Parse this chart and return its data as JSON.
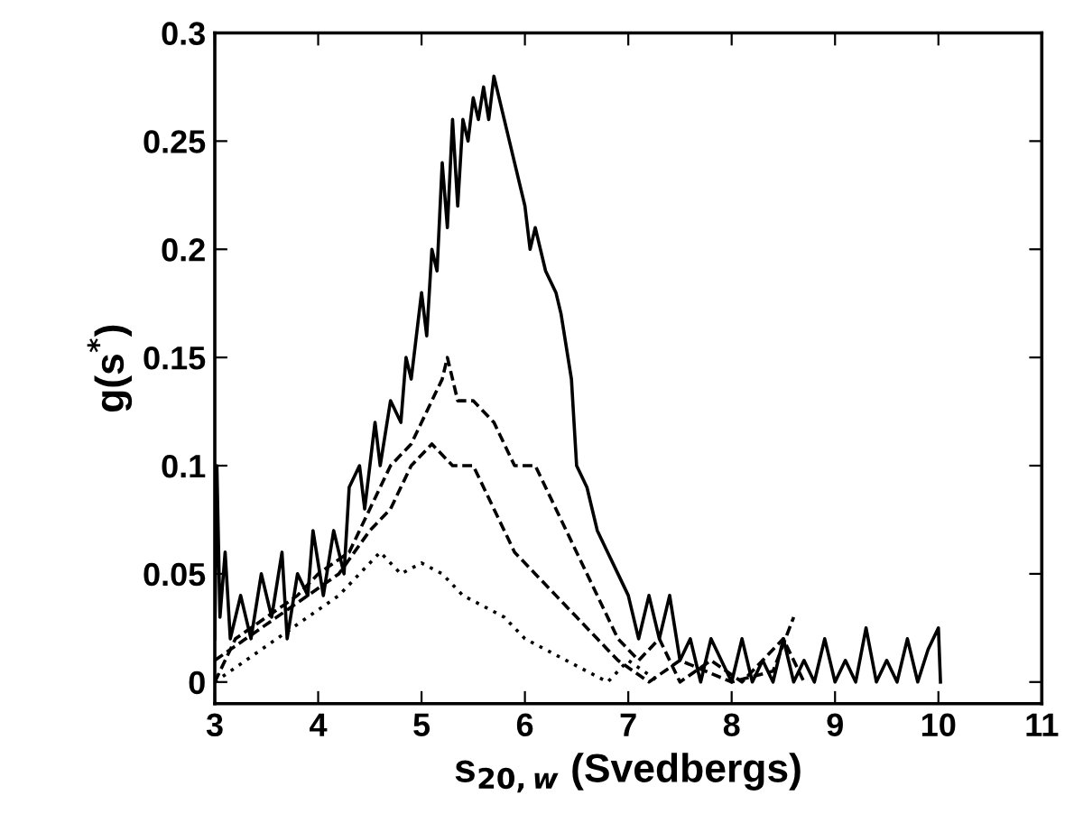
{
  "chart_data": {
    "type": "line",
    "xlabel": "s$_{20,w}$ (Svedbergs)",
    "ylabel": "g(s$^{*}$)",
    "xlim": [
      3,
      11
    ],
    "xticks": [
      3,
      4,
      5,
      6,
      7,
      8,
      9,
      10,
      11
    ],
    "ylim": [
      -0.01,
      0.3
    ],
    "yticks": [
      0,
      0.05,
      0.1,
      0.15,
      0.2,
      0.25,
      0.3
    ],
    "grid": false,
    "legend": false,
    "marker": "none",
    "series": [
      {
        "color": "#000000",
        "line_style": "solid",
        "x": [
          3.0,
          3.02,
          3.05,
          3.1,
          3.15,
          3.25,
          3.35,
          3.45,
          3.55,
          3.65,
          3.7,
          3.8,
          3.9,
          3.95,
          4.05,
          4.15,
          4.25,
          4.3,
          4.4,
          4.45,
          4.55,
          4.6,
          4.7,
          4.8,
          4.85,
          4.9,
          5.0,
          5.05,
          5.1,
          5.15,
          5.2,
          5.25,
          5.3,
          5.35,
          5.4,
          5.45,
          5.5,
          5.55,
          5.6,
          5.65,
          5.7,
          5.75,
          5.8,
          5.85,
          5.9,
          6.0,
          6.05,
          6.1,
          6.2,
          6.3,
          6.35,
          6.45,
          6.5,
          6.6,
          6.7,
          6.8,
          6.9,
          7.0,
          7.1,
          7.2,
          7.3,
          7.4,
          7.5,
          7.6,
          7.7,
          7.8,
          7.9,
          8.0,
          8.1,
          8.2,
          8.3,
          8.4,
          8.5,
          8.6,
          8.7,
          8.8,
          8.9,
          9.0,
          9.1,
          9.2,
          9.3,
          9.4,
          9.5,
          9.6,
          9.7,
          9.8,
          9.9,
          10.0,
          10.02
        ],
        "values": [
          0.02,
          0.1,
          0.03,
          0.06,
          0.02,
          0.04,
          0.02,
          0.05,
          0.03,
          0.06,
          0.02,
          0.05,
          0.04,
          0.07,
          0.04,
          0.07,
          0.05,
          0.09,
          0.1,
          0.08,
          0.12,
          0.1,
          0.13,
          0.12,
          0.15,
          0.14,
          0.18,
          0.16,
          0.2,
          0.19,
          0.24,
          0.21,
          0.26,
          0.22,
          0.26,
          0.25,
          0.27,
          0.26,
          0.275,
          0.26,
          0.28,
          0.27,
          0.26,
          0.25,
          0.24,
          0.22,
          0.2,
          0.21,
          0.19,
          0.18,
          0.17,
          0.14,
          0.1,
          0.09,
          0.07,
          0.06,
          0.05,
          0.04,
          0.02,
          0.04,
          0.02,
          0.04,
          0.01,
          0.02,
          0.0,
          0.02,
          0.01,
          0.0,
          0.02,
          0.0,
          0.01,
          0.0,
          0.02,
          0.0,
          0.01,
          0.0,
          0.02,
          0.0,
          0.01,
          0.0,
          0.025,
          0.0,
          0.01,
          0.0,
          0.02,
          0.0,
          0.015,
          0.025,
          0.0
        ]
      },
      {
        "color": "#000000",
        "line_style": "dashed",
        "x": [
          3.0,
          3.2,
          3.5,
          3.8,
          4.0,
          4.3,
          4.5,
          4.7,
          4.9,
          5.0,
          5.1,
          5.2,
          5.25,
          5.35,
          5.5,
          5.7,
          5.9,
          6.1,
          6.3,
          6.5,
          6.7,
          6.9,
          7.1,
          7.3,
          7.5,
          7.8,
          8.1,
          8.5,
          8.7
        ],
        "values": [
          0.0,
          0.02,
          0.03,
          0.04,
          0.05,
          0.06,
          0.08,
          0.1,
          0.11,
          0.12,
          0.13,
          0.14,
          0.15,
          0.13,
          0.13,
          0.12,
          0.1,
          0.1,
          0.08,
          0.06,
          0.04,
          0.02,
          0.01,
          0.02,
          0.0,
          0.01,
          0.0,
          0.02,
          0.0
        ]
      },
      {
        "color": "#000000",
        "line_style": "dashed",
        "x": [
          3.0,
          3.3,
          3.6,
          3.9,
          4.2,
          4.5,
          4.7,
          4.9,
          5.1,
          5.3,
          5.5,
          5.7,
          5.9,
          6.1,
          6.3,
          6.5,
          6.7,
          6.9,
          7.2,
          7.5,
          8.0,
          8.4,
          8.6
        ],
        "values": [
          0.01,
          0.02,
          0.03,
          0.04,
          0.05,
          0.07,
          0.08,
          0.1,
          0.11,
          0.1,
          0.1,
          0.08,
          0.06,
          0.05,
          0.04,
          0.03,
          0.02,
          0.01,
          0.0,
          0.01,
          0.0,
          0.005,
          0.03
        ]
      },
      {
        "color": "#000000",
        "line_style": "dotted",
        "x": [
          3.0,
          3.3,
          3.6,
          3.9,
          4.2,
          4.4,
          4.6,
          4.8,
          5.0,
          5.2,
          5.4,
          5.6,
          5.8,
          6.0,
          6.2,
          6.4,
          6.6,
          6.8,
          7.0,
          7.3
        ],
        "values": [
          0.0,
          0.01,
          0.02,
          0.03,
          0.04,
          0.05,
          0.06,
          0.05,
          0.055,
          0.05,
          0.04,
          0.035,
          0.03,
          0.02,
          0.015,
          0.01,
          0.005,
          0.0,
          0.01,
          0.0
        ]
      }
    ]
  }
}
